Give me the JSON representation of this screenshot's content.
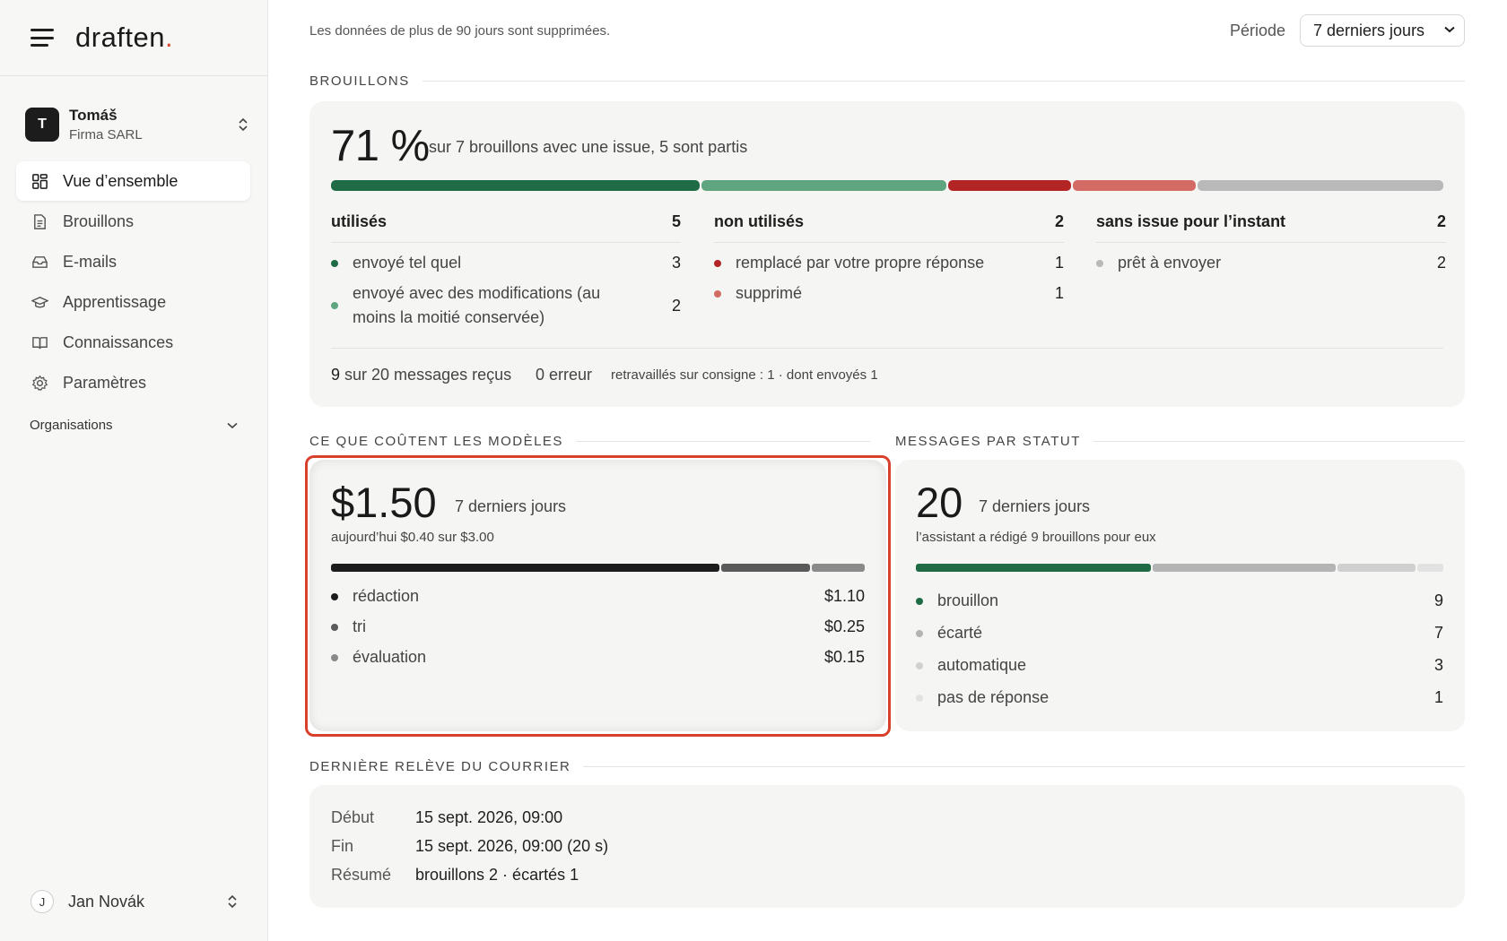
{
  "brand": {
    "name": "draften",
    "dot": "."
  },
  "org": {
    "avatar": "T",
    "name": "Tomáš",
    "company": "Firma SARL"
  },
  "nav": [
    {
      "label": "Vue d’ensemble",
      "icon": "grid-icon",
      "active": true
    },
    {
      "label": "Brouillons",
      "icon": "document-icon"
    },
    {
      "label": "E-mails",
      "icon": "inbox-icon"
    },
    {
      "label": "Apprentissage",
      "icon": "graduation-cap-icon"
    },
    {
      "label": "Connaissances",
      "icon": "book-icon"
    },
    {
      "label": "Paramètres",
      "icon": "gear-icon"
    }
  ],
  "organisations_label": "Organisations",
  "user": {
    "avatar": "J",
    "name": "Jan Novák"
  },
  "topbar": {
    "notice": "Les données de plus de 90 jours sont supprimées.",
    "period_label": "Période",
    "period_value": "7 derniers jours"
  },
  "drafts": {
    "section_title": "BROUILLONS",
    "percent": "71 %",
    "subtitle": "sur 7 brouillons avec une issue, 5 sont partis",
    "bar_segments": [
      {
        "name": "envoyé tel quel",
        "value": 3,
        "color": "#1e6b45"
      },
      {
        "name": "envoyé avec des modifications",
        "value": 2,
        "color": "#5fa57f"
      },
      {
        "name": "remplacé par votre propre réponse",
        "value": 1,
        "color": "#b32424"
      },
      {
        "name": "supprimé",
        "value": 1,
        "color": "#d46a64"
      },
      {
        "name": "prêt à envoyer",
        "value": 2,
        "color": "#b9b9b9"
      }
    ],
    "columns": [
      {
        "title": "utilisés",
        "count": "5",
        "rows": [
          {
            "label": "envoyé tel quel",
            "value": "3",
            "color": "#1e6b45"
          },
          {
            "label": "envoyé avec des modifications (au moins la moitié conservée)",
            "value": "2",
            "color": "#5fa57f"
          }
        ]
      },
      {
        "title": "non utilisés",
        "count": "2",
        "rows": [
          {
            "label": "remplacé par votre propre réponse",
            "value": "1",
            "color": "#b32424"
          },
          {
            "label": "supprimé",
            "value": "1",
            "color": "#d46a64"
          }
        ]
      },
      {
        "title": "sans issue pour l’instant",
        "count": "2",
        "rows": [
          {
            "label": "prêt à envoyer",
            "value": "2",
            "color": "#b9b9b9"
          }
        ]
      }
    ],
    "summary": {
      "received_num": "9",
      "received_text": "sur 20 messages reçus",
      "errors": "0 erreur",
      "reworked": "retravaillés sur consigne : 1 · dont envoyés 1"
    }
  },
  "costs": {
    "section_title": "CE QUE COÛTENT LES MODÈLES",
    "total": "$1.50",
    "period": "7 derniers jours",
    "today_note": "aujourd’hui $0.40 sur $3.00",
    "segments": [
      {
        "label": "rédaction",
        "amount": "$1.10",
        "value": 1.1,
        "color": "#1c1c1c"
      },
      {
        "label": "tri",
        "amount": "$0.25",
        "value": 0.25,
        "color": "#5a5a5a"
      },
      {
        "label": "évaluation",
        "amount": "$0.15",
        "value": 0.15,
        "color": "#8a8a8a"
      }
    ]
  },
  "status": {
    "section_title": "MESSAGES PAR STATUT",
    "total": "20",
    "period": "7 derniers jours",
    "note": "l’assistant a rédigé 9 brouillons pour eux",
    "segments": [
      {
        "label": "brouillon",
        "value": 9,
        "display": "9",
        "color": "#1e6b45"
      },
      {
        "label": "écarté",
        "value": 7,
        "display": "7",
        "color": "#b4b4b4"
      },
      {
        "label": "automatique",
        "value": 3,
        "display": "3",
        "color": "#d0d0d0"
      },
      {
        "label": "pas de réponse",
        "value": 1,
        "display": "1",
        "color": "#e2e2e2"
      }
    ]
  },
  "mail_fetch": {
    "section_title": "DERNIÈRE RELÈVE DU COURRIER",
    "rows": [
      {
        "key": "Début",
        "value": "15 sept. 2026, 09:00"
      },
      {
        "key": "Fin",
        "value": "15 sept. 2026, 09:00 (20 s)"
      },
      {
        "key": "Résumé",
        "value": "brouillons 2 · écartés 1"
      }
    ]
  },
  "colors": {
    "accent": "#d94a32",
    "highlight": "#d9402c"
  }
}
